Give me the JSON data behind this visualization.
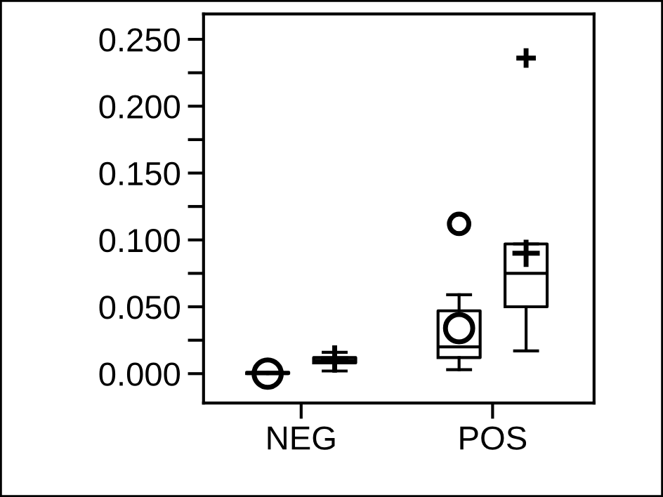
{
  "chart_data": {
    "type": "box",
    "categories": [
      "NEG",
      "POS"
    ],
    "series": [
      {
        "color": "#000000",
        "marker": "circle",
        "boxes": [
          {
            "low": 0.0,
            "q1": 0.0,
            "median": 0.0,
            "q3": 0.001,
            "high": 0.001,
            "mean": 0.0
          },
          {
            "low": 0.003,
            "q1": 0.012,
            "median": 0.02,
            "q3": 0.047,
            "high": 0.059,
            "mean": 0.034,
            "outliers": [
              0.112
            ]
          }
        ]
      },
      {
        "color": "#000000",
        "marker": "cross",
        "boxes": [
          {
            "low": 0.002,
            "q1": 0.008,
            "median": 0.01,
            "q3": 0.012,
            "high": 0.016,
            "mean": 0.011
          },
          {
            "low": 0.017,
            "q1": 0.05,
            "median": 0.075,
            "q3": 0.097,
            "high": 0.097,
            "mean": 0.09,
            "outliers": [
              0.236
            ]
          }
        ]
      }
    ],
    "ylim": [
      -0.022,
      0.269
    ],
    "yticks": [
      {
        "value": 0.0,
        "label": "0.000"
      },
      {
        "value": 0.025,
        "label": null
      },
      {
        "value": 0.05,
        "label": "0.050"
      },
      {
        "value": 0.075,
        "label": null
      },
      {
        "value": 0.1,
        "label": "0.100"
      },
      {
        "value": 0.125,
        "label": null
      },
      {
        "value": 0.15,
        "label": "0.150"
      },
      {
        "value": 0.175,
        "label": null
      },
      {
        "value": 0.2,
        "label": "0.200"
      },
      {
        "value": 0.225,
        "label": null
      },
      {
        "value": 0.25,
        "label": "0.250"
      }
    ],
    "grid": false
  }
}
